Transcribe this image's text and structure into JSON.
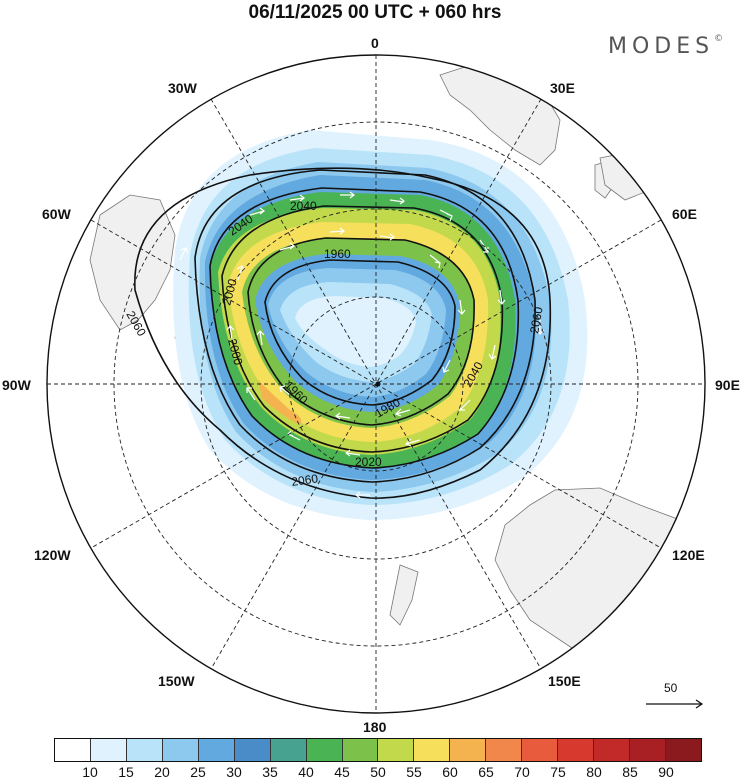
{
  "title": "06/11/2025  00 UTC  + 060 hrs",
  "brand": "MODES",
  "brand_mark": "©",
  "longitude_labels": {
    "lon_0": "0",
    "lon_30e": "30E",
    "lon_60e": "60E",
    "lon_90e": "90E",
    "lon_120e": "120E",
    "lon_150e": "150E",
    "lon_180": "180",
    "lon_150w": "150W",
    "lon_120w": "120W",
    "lon_90w": "90W",
    "lon_60w": "60W",
    "lon_30w": "30W"
  },
  "contour_labels": {
    "c1": "2040",
    "c2": "2040",
    "c3": "1960",
    "c4": "2000",
    "c5": "2000",
    "c6": "1960",
    "c7": "1980",
    "c8": "2020",
    "c9": "2040",
    "c10": "2060",
    "c11": "2060",
    "c12": "2060"
  },
  "reference_vector": {
    "label": "50"
  },
  "colorbar": {
    "ticks": [
      "10",
      "15",
      "20",
      "25",
      "30",
      "35",
      "40",
      "45",
      "50",
      "55",
      "60",
      "65",
      "70",
      "75",
      "80",
      "85",
      "90"
    ],
    "colors": [
      "#ffffff",
      "#dff2fd",
      "#b9e3f9",
      "#8dc8ee",
      "#62a9e0",
      "#4a8cc8",
      "#47a28f",
      "#4ab454",
      "#7cc24a",
      "#c2d94c",
      "#f6df5a",
      "#f5b34f",
      "#f1874a",
      "#e85c3d",
      "#d8392f",
      "#c22a2a",
      "#a81f24",
      "#8a1a1d"
    ]
  },
  "colors": {
    "land": "#f0f0f0",
    "coast": "#777777",
    "contour": "#111111",
    "wind_arrow": "#ffffff"
  }
}
